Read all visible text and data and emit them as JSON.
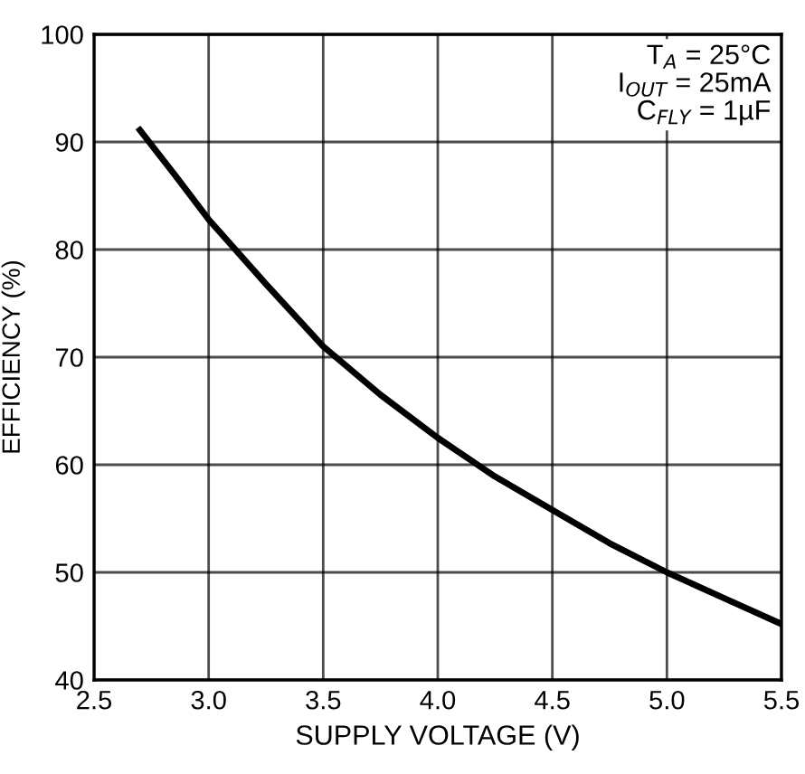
{
  "chart_data": {
    "type": "line",
    "xlabel": "SUPPLY VOLTAGE (V)",
    "ylabel": "EFFICIENCY (%)",
    "x": [
      2.7,
      2.85,
      3.0,
      3.25,
      3.5,
      3.75,
      4.0,
      4.25,
      4.5,
      4.75,
      5.0,
      5.25,
      5.5
    ],
    "series": [
      {
        "color": "#000000",
        "values": [
          91.1,
          87,
          82.8,
          76.8,
          71.0,
          66.5,
          62.5,
          58.9,
          55.8,
          52.7,
          50,
          47.6,
          45.2
        ]
      }
    ],
    "xlim": [
      2.5,
      5.5
    ],
    "xticks": [
      2.5,
      {
        "value": 3,
        "label": "3.0"
      },
      3.5,
      {
        "value": 4,
        "label": "4.0"
      },
      4.5,
      {
        "value": 5,
        "label": "5.0"
      },
      5.5
    ],
    "ylim": [
      40,
      100
    ],
    "yticks": [
      40,
      50,
      60,
      70,
      80,
      90,
      100
    ],
    "grid": true,
    "legend": false,
    "marker": "none",
    "line_style": "solid",
    "annotations": [
      "T$_{A}$ = 25°C\nI$_{OUT}$ = 25mA\nC$_{FLY}$ = 1µF"
    ]
  }
}
